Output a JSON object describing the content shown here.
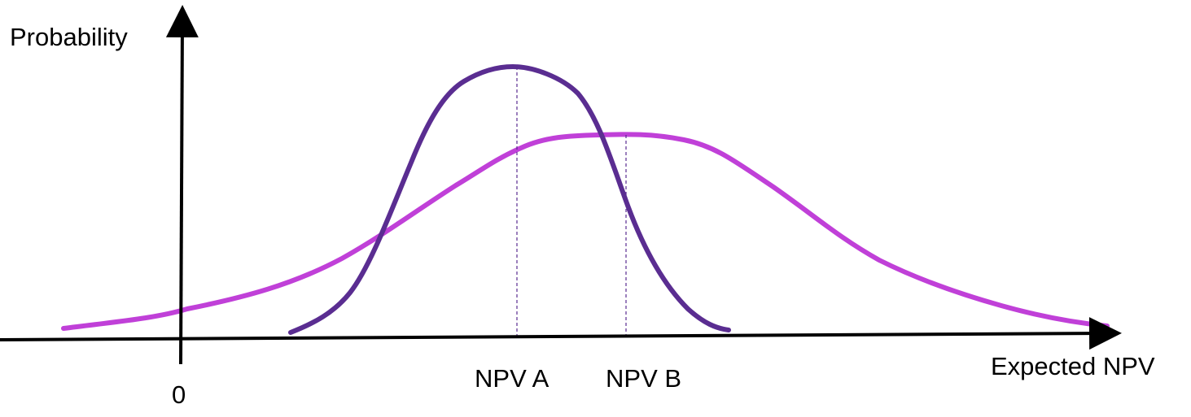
{
  "axes": {
    "y_label": "Probability",
    "x_label": "Expected NPV",
    "origin_label": "0"
  },
  "markers": [
    {
      "id": "a",
      "label": "NPV A"
    },
    {
      "id": "b",
      "label": "NPV B"
    }
  ],
  "curves": [
    {
      "id": "a",
      "color": "#5a2d91",
      "spread": "narrow"
    },
    {
      "id": "b",
      "color": "#c040d8",
      "spread": "wide"
    }
  ],
  "colors": {
    "axis": "#000000",
    "dashed_guide": "#5a2d91"
  }
}
